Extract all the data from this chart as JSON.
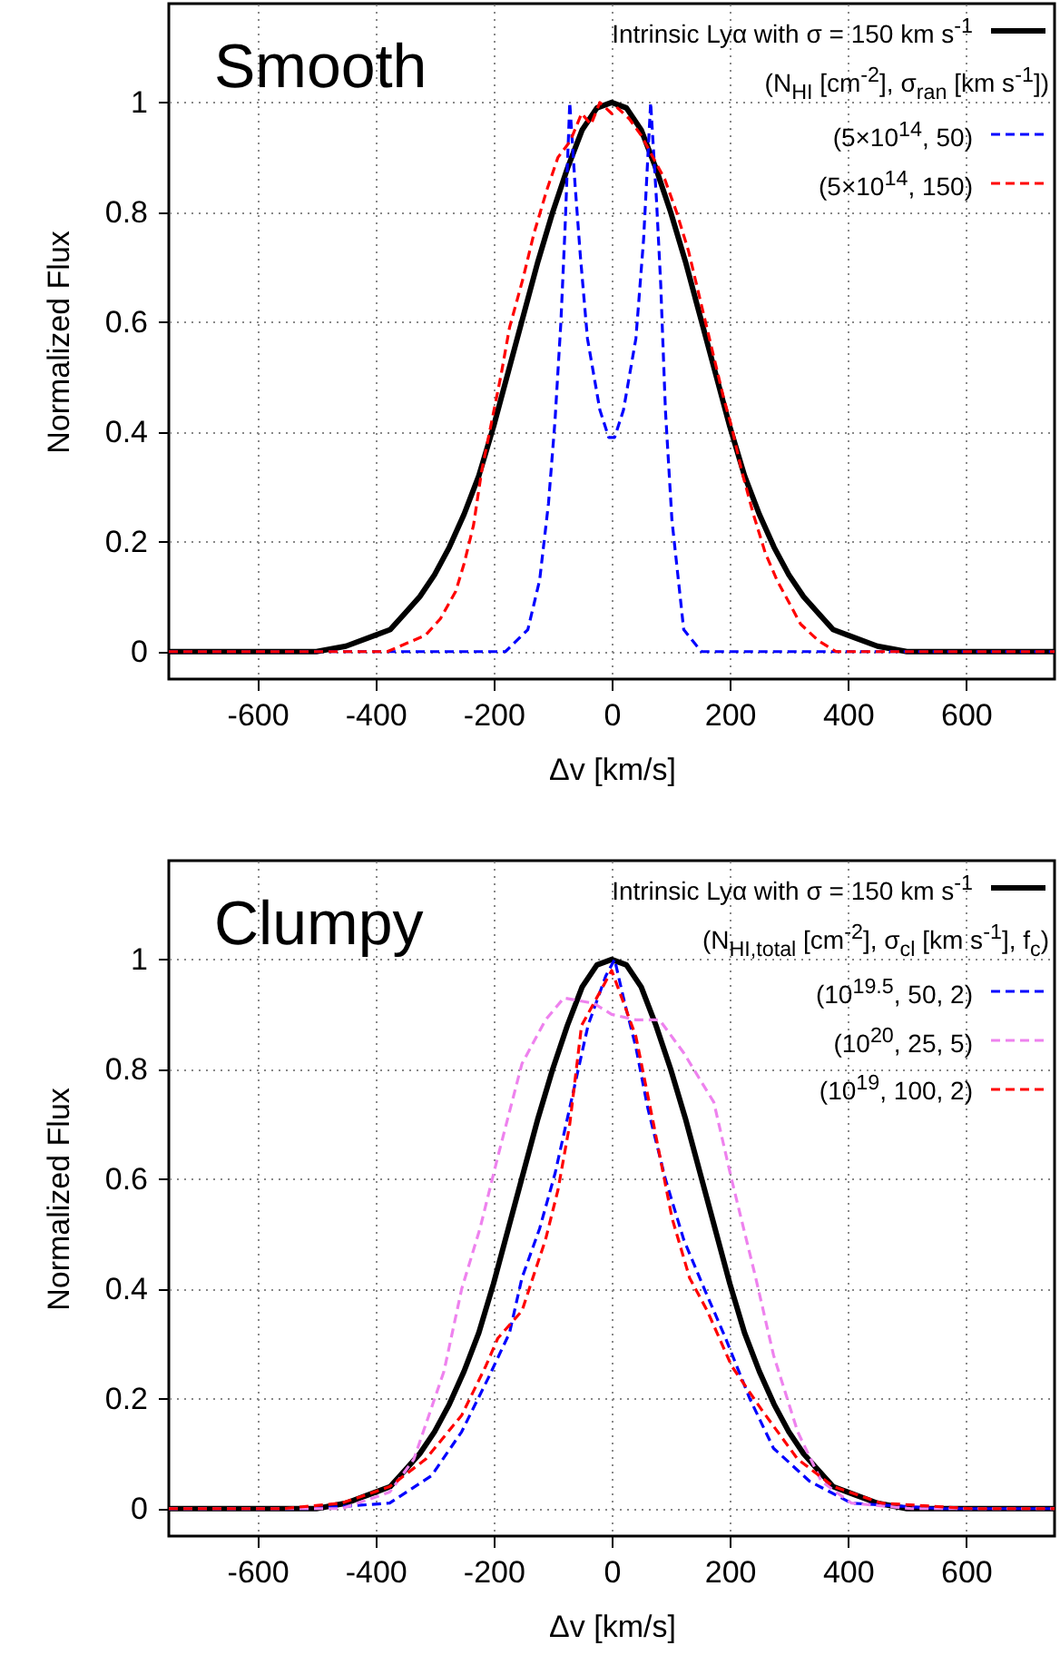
{
  "chart_data": [
    {
      "type": "line",
      "title": "Smooth",
      "xlabel": "Δv [km/s]",
      "ylabel": "Normalized Flux",
      "legend_title": "(N$_{HI}$ [cm$^{-2}$], σ$_{ran}$ [km s$^{-1}$])",
      "legend": "top right",
      "grid": true,
      "xlim": [
        -750,
        750
      ],
      "ylim": [
        -0.05,
        1.18
      ],
      "xticks": [
        -600,
        -400,
        -200,
        0,
        200,
        400,
        600
      ],
      "yticks": [
        0,
        0.2,
        0.4,
        0.6,
        0.8,
        1
      ],
      "series": [
        {
          "name": "Intrinsic Lyα with σ = 150 km s$^{-1}$",
          "color": "#000000",
          "line_style": "solid",
          "x": [
            -750,
            -600,
            -500,
            -450,
            -400,
            -375,
            -350,
            -325,
            -300,
            -275,
            -250,
            -225,
            -200,
            -175,
            -150,
            -125,
            -100,
            -75,
            -50,
            -25,
            0,
            25,
            50,
            75,
            100,
            125,
            150,
            175,
            200,
            225,
            250,
            275,
            300,
            325,
            350,
            375,
            400,
            450,
            500,
            600,
            750
          ],
          "values": [
            0,
            0,
            0,
            0.01,
            0.03,
            0.04,
            0.07,
            0.1,
            0.14,
            0.19,
            0.25,
            0.32,
            0.41,
            0.51,
            0.61,
            0.71,
            0.8,
            0.88,
            0.95,
            0.99,
            1,
            0.99,
            0.95,
            0.88,
            0.8,
            0.71,
            0.61,
            0.51,
            0.41,
            0.32,
            0.25,
            0.19,
            0.14,
            0.1,
            0.07,
            0.04,
            0.03,
            0.01,
            0,
            0,
            0
          ]
        },
        {
          "name": "(5×10$^{14}$, 50)",
          "color": "#0000ff",
          "line_style": "dashed",
          "x": [
            -750,
            -180,
            -142,
            -122,
            -107,
            -96,
            -86,
            -79,
            -71,
            -62,
            -53,
            -41,
            -20,
            -5,
            5,
            20,
            41,
            54,
            66,
            76,
            83,
            91,
            102,
            122,
            152,
            750
          ],
          "values": [
            0,
            0,
            0.04,
            0.13,
            0.27,
            0.42,
            0.6,
            0.77,
            1,
            0.85,
            0.72,
            0.57,
            0.44,
            0.39,
            0.39,
            0.44,
            0.57,
            0.75,
            1,
            0.82,
            0.67,
            0.44,
            0.24,
            0.04,
            0,
            0
          ]
        },
        {
          "name": "(5×10$^{14}$, 150)",
          "color": "#ff0000",
          "line_style": "dashed",
          "x": [
            -750,
            -380,
            -315,
            -290,
            -264,
            -250,
            -234,
            -220,
            -203,
            -188,
            -173,
            -150,
            -132,
            -110,
            -91,
            -70,
            -51,
            -35,
            -20,
            0,
            10,
            30,
            50,
            70,
            90,
            110,
            130,
            150,
            170,
            190,
            203,
            220,
            240,
            260,
            280,
            300,
            320,
            350,
            380,
            750
          ],
          "values": [
            0,
            0,
            0.03,
            0.06,
            0.11,
            0.16,
            0.23,
            0.33,
            0.42,
            0.5,
            0.59,
            0.68,
            0.76,
            0.84,
            0.9,
            0.93,
            0.98,
            0.96,
            1,
            0.98,
            0.99,
            0.97,
            0.94,
            0.9,
            0.86,
            0.8,
            0.73,
            0.64,
            0.55,
            0.46,
            0.41,
            0.33,
            0.25,
            0.18,
            0.13,
            0.09,
            0.05,
            0.02,
            0,
            0
          ]
        }
      ]
    },
    {
      "type": "line",
      "title": "Clumpy",
      "xlabel": "Δv [km/s]",
      "ylabel": "Normalized Flux",
      "legend_title": "(N$_{HI,total}$ [cm$^{-2}$], σ$_{cl}$ [km s$^{-1}$], f$_{c}$)",
      "legend": "top right",
      "grid": true,
      "xlim": [
        -750,
        750
      ],
      "ylim": [
        -0.05,
        1.18
      ],
      "xticks": [
        -600,
        -400,
        -200,
        0,
        200,
        400,
        600
      ],
      "yticks": [
        0,
        0.2,
        0.4,
        0.6,
        0.8,
        1
      ],
      "series": [
        {
          "name": "Intrinsic Lyα with σ = 150 km s$^{-1}$",
          "color": "#000000",
          "line_style": "solid",
          "x": [
            -750,
            -600,
            -500,
            -450,
            -400,
            -375,
            -350,
            -325,
            -300,
            -275,
            -250,
            -225,
            -200,
            -175,
            -150,
            -125,
            -100,
            -75,
            -50,
            -25,
            0,
            25,
            50,
            75,
            100,
            125,
            150,
            175,
            200,
            225,
            250,
            275,
            300,
            325,
            350,
            375,
            400,
            450,
            500,
            600,
            750
          ],
          "values": [
            0,
            0,
            0,
            0.01,
            0.03,
            0.04,
            0.07,
            0.1,
            0.14,
            0.19,
            0.25,
            0.32,
            0.41,
            0.51,
            0.61,
            0.71,
            0.8,
            0.88,
            0.95,
            0.99,
            1,
            0.99,
            0.95,
            0.88,
            0.8,
            0.71,
            0.61,
            0.51,
            0.41,
            0.32,
            0.25,
            0.19,
            0.14,
            0.1,
            0.07,
            0.04,
            0.03,
            0.01,
            0,
            0,
            0
          ]
        },
        {
          "name": "(10$^{19.5}$, 50, 2)",
          "color": "#0000ff",
          "line_style": "dashed",
          "x": [
            -750,
            -508,
            -376,
            -305,
            -254,
            -208,
            -173,
            -152,
            -122,
            -96,
            -71,
            -40,
            -10,
            5,
            20,
            41,
            61,
            91,
            122,
            157,
            193,
            234,
            274,
            335,
            406,
            558,
            750
          ],
          "values": [
            0,
            0,
            0.01,
            0.06,
            0.14,
            0.24,
            0.32,
            0.42,
            0.51,
            0.61,
            0.73,
            0.88,
            0.97,
            1,
            0.93,
            0.84,
            0.73,
            0.6,
            0.49,
            0.4,
            0.31,
            0.2,
            0.11,
            0.05,
            0.01,
            0,
            0
          ]
        },
        {
          "name": "(10$^{20}$, 25, 5)",
          "color": "#ee82ee",
          "line_style": "dashed",
          "x": [
            -750,
            -457,
            -376,
            -335,
            -284,
            -254,
            -223,
            -193,
            -152,
            -112,
            -81,
            -30,
            0,
            41,
            81,
            122,
            173,
            203,
            244,
            274,
            315,
            355,
            406,
            508,
            750
          ],
          "values": [
            0,
            0,
            0.03,
            0.09,
            0.25,
            0.4,
            0.51,
            0.64,
            0.81,
            0.89,
            0.93,
            0.92,
            0.9,
            0.89,
            0.89,
            0.83,
            0.74,
            0.6,
            0.42,
            0.28,
            0.14,
            0.05,
            0.01,
            0,
            0
          ]
        },
        {
          "name": "(10$^{19}$, 100, 2)",
          "color": "#ff0000",
          "line_style": "dashed",
          "x": [
            -750,
            -558,
            -457,
            -376,
            -315,
            -254,
            -213,
            -193,
            -152,
            -112,
            -91,
            -71,
            -51,
            -10,
            0,
            41,
            71,
            102,
            132,
            162,
            203,
            254,
            315,
            376,
            457,
            609,
            750
          ],
          "values": [
            0,
            0,
            0.01,
            0.04,
            0.09,
            0.17,
            0.26,
            0.31,
            0.36,
            0.49,
            0.58,
            0.7,
            0.88,
            0.96,
            0.98,
            0.86,
            0.7,
            0.53,
            0.42,
            0.36,
            0.26,
            0.18,
            0.09,
            0.04,
            0.01,
            0,
            0
          ]
        }
      ]
    }
  ]
}
